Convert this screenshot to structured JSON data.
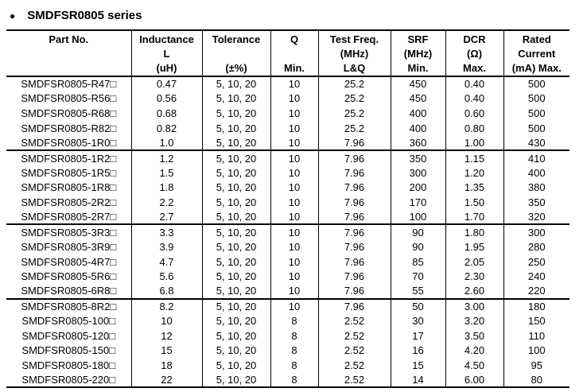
{
  "page": {
    "bullet": "●",
    "title": "SMDFSR0805 series"
  },
  "table": {
    "columns": [
      {
        "key": "part-no",
        "lines": [
          "Part No.",
          "",
          ""
        ]
      },
      {
        "key": "inductance",
        "lines": [
          "Inductance",
          "L",
          "(uH)"
        ]
      },
      {
        "key": "tolerance",
        "lines": [
          "Tolerance",
          "",
          "(±%)"
        ]
      },
      {
        "key": "q",
        "lines": [
          "Q",
          "",
          "Min."
        ]
      },
      {
        "key": "test-freq",
        "lines": [
          "Test Freq.",
          "(MHz)",
          "L&Q"
        ]
      },
      {
        "key": "srf",
        "lines": [
          "SRF",
          "(MHz)",
          "Min."
        ]
      },
      {
        "key": "dcr",
        "lines": [
          "DCR",
          "(Ω)",
          "Max."
        ]
      },
      {
        "key": "rated-current",
        "lines": [
          "Rated",
          "Current",
          "(mA) Max."
        ]
      }
    ],
    "groups": [
      {
        "rows": [
          [
            "SMDFSR0805-R47□",
            "0.47",
            "5, 10, 20",
            "10",
            "25.2",
            "450",
            "0.40",
            "500"
          ],
          [
            "SMDFSR0805-R56□",
            "0.56",
            "5, 10, 20",
            "10",
            "25.2",
            "450",
            "0.40",
            "500"
          ],
          [
            "SMDFSR0805-R68□",
            "0.68",
            "5, 10, 20",
            "10",
            "25.2",
            "400",
            "0.60",
            "500"
          ],
          [
            "SMDFSR0805-R82□",
            "0.82",
            "5, 10, 20",
            "10",
            "25.2",
            "400",
            "0.80",
            "500"
          ],
          [
            "SMDFSR0805-1R0□",
            "1.0",
            "5, 10, 20",
            "10",
            "7.96",
            "360",
            "1.00",
            "430"
          ]
        ]
      },
      {
        "rows": [
          [
            "SMDFSR0805-1R2□",
            "1.2",
            "5, 10, 20",
            "10",
            "7.96",
            "350",
            "1.15",
            "410"
          ],
          [
            "SMDFSR0805-1R5□",
            "1.5",
            "5, 10, 20",
            "10",
            "7.96",
            "300",
            "1.20",
            "400"
          ],
          [
            "SMDFSR0805-1R8□",
            "1.8",
            "5, 10, 20",
            "10",
            "7.96",
            "200",
            "1.35",
            "380"
          ],
          [
            "SMDFSR0805-2R2□",
            "2.2",
            "5, 10, 20",
            "10",
            "7.96",
            "170",
            "1.50",
            "350"
          ],
          [
            "SMDFSR0805-2R7□",
            "2.7",
            "5, 10, 20",
            "10",
            "7.96",
            "100",
            "1.70",
            "320"
          ]
        ]
      },
      {
        "rows": [
          [
            "SMDFSR0805-3R3□",
            "3.3",
            "5, 10, 20",
            "10",
            "7.96",
            "90",
            "1.80",
            "300"
          ],
          [
            "SMDFSR0805-3R9□",
            "3.9",
            "5, 10, 20",
            "10",
            "7.96",
            "90",
            "1.95",
            "280"
          ],
          [
            "SMDFSR0805-4R7□",
            "4.7",
            "5, 10, 20",
            "10",
            "7.96",
            "85",
            "2.05",
            "250"
          ],
          [
            "SMDFSR0805-5R6□",
            "5.6",
            "5, 10, 20",
            "10",
            "7.96",
            "70",
            "2.30",
            "240"
          ],
          [
            "SMDFSR0805-6R8□",
            "6.8",
            "5, 10, 20",
            "10",
            "7.96",
            "55",
            "2.60",
            "220"
          ]
        ]
      },
      {
        "rows": [
          [
            "SMDFSR0805-8R2□",
            "8.2",
            "5, 10, 20",
            "10",
            "7.96",
            "50",
            "3.00",
            "180"
          ],
          [
            "SMDFSR0805-100□",
            "10",
            "5, 10, 20",
            "8",
            "2.52",
            "30",
            "3.20",
            "150"
          ],
          [
            "SMDFSR0805-120□",
            "12",
            "5, 10, 20",
            "8",
            "2.52",
            "17",
            "3.50",
            "110"
          ],
          [
            "SMDFSR0805-150□",
            "15",
            "5, 10, 20",
            "8",
            "2.52",
            "16",
            "4.20",
            "100"
          ],
          [
            "SMDFSR0805-180□",
            "18",
            "5, 10, 20",
            "8",
            "2.52",
            "15",
            "4.50",
            "95"
          ],
          [
            "SMDFSR0805-220□",
            "22",
            "5, 10, 20",
            "8",
            "2.52",
            "14",
            "6.00",
            "80"
          ]
        ]
      }
    ]
  }
}
